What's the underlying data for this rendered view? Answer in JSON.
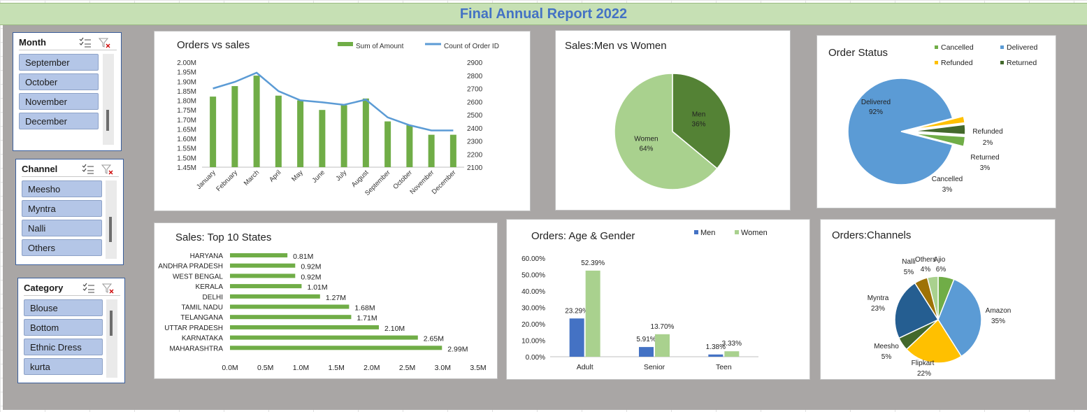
{
  "title": "Final Annual Report 2022",
  "slicers": {
    "month": {
      "title": "Month",
      "items": [
        "September",
        "October",
        "November",
        "December"
      ]
    },
    "channel": {
      "title": "Channel",
      "items": [
        "Meesho",
        "Myntra",
        "Nalli",
        "Others"
      ]
    },
    "category": {
      "title": "Category",
      "items": [
        "Blouse",
        "Bottom",
        "Ethnic Dress",
        "kurta"
      ]
    },
    "icons": [
      "multi-select-icon",
      "clear-filter-icon"
    ]
  },
  "colors": {
    "green": "#70ad47",
    "blue": "#5b9bd5",
    "dark_green": "#548235",
    "light_green": "#a9d18e",
    "gold": "#ffc000",
    "navy": "#255e91",
    "brown": "#9e7206",
    "dark_olive": "#43682b",
    "accent_blue": "#4472c4"
  },
  "chart_data": [
    {
      "id": "orders_vs_sales",
      "type": "bar",
      "title": "Orders vs sales",
      "categories": [
        "January",
        "February",
        "March",
        "April",
        "May",
        "June",
        "July",
        "August",
        "September",
        "October",
        "November",
        "December"
      ],
      "series": [
        {
          "name": "Sum of Amount",
          "type": "bar",
          "axis": "left",
          "values": [
            1.82,
            1.875,
            1.93,
            1.825,
            1.8,
            1.75,
            1.775,
            1.81,
            1.69,
            1.67,
            1.62,
            1.62
          ]
        },
        {
          "name": "Count of Order ID",
          "type": "line",
          "axis": "right",
          "values": [
            2700,
            2750,
            2820,
            2680,
            2610,
            2595,
            2575,
            2615,
            2480,
            2420,
            2380,
            2380
          ]
        }
      ],
      "left_ticks": [
        "1.45M",
        "1.50M",
        "1.55M",
        "1.60M",
        "1.65M",
        "1.70M",
        "1.75M",
        "1.80M",
        "1.85M",
        "1.90M",
        "1.95M",
        "2.00M"
      ],
      "right_ticks": [
        "2100",
        "2200",
        "2300",
        "2400",
        "2500",
        "2600",
        "2700",
        "2800",
        "2900"
      ],
      "ylim_left": [
        1.45,
        2.0
      ],
      "ylim_right": [
        2100,
        2900
      ]
    },
    {
      "id": "men_vs_women",
      "type": "pie",
      "title": "Sales:Men vs Women",
      "slices": [
        {
          "label": "Men",
          "pct": "36%",
          "value": 36,
          "color": "#548235"
        },
        {
          "label": "Women",
          "pct": "64%",
          "value": 64,
          "color": "#a9d18e"
        }
      ]
    },
    {
      "id": "order_status",
      "type": "pie",
      "title": "Order Status",
      "legend": [
        "Cancelled",
        "Delivered",
        "Refunded",
        "Returned"
      ],
      "slices": [
        {
          "label": "Delivered",
          "pct": "92%",
          "value": 92,
          "color": "#5b9bd5"
        },
        {
          "label": "Refunded",
          "pct": "2%",
          "value": 2,
          "color": "#ffc000"
        },
        {
          "label": "Returned",
          "pct": "3%",
          "value": 3,
          "color": "#43682b"
        },
        {
          "label": "Cancelled",
          "pct": "3%",
          "value": 3,
          "color": "#70ad47"
        }
      ]
    },
    {
      "id": "top_states",
      "type": "bar",
      "orientation": "horizontal",
      "title": "Sales: Top 10 States",
      "categories": [
        "HARYANA",
        "ANDHRA PRADESH",
        "WEST BENGAL",
        "KERALA",
        "DELHI",
        "TAMIL NADU",
        "TELANGANA",
        "UTTAR PRADESH",
        "KARNATAKA",
        "MAHARASHTRA"
      ],
      "values": [
        0.81,
        0.92,
        0.92,
        1.01,
        1.27,
        1.68,
        1.71,
        2.1,
        2.65,
        2.99
      ],
      "value_labels": [
        "0.81M",
        "0.92M",
        "0.92M",
        "1.01M",
        "1.27M",
        "1.68M",
        "1.71M",
        "2.10M",
        "2.65M",
        "2.99M"
      ],
      "x_ticks": [
        "0.0M",
        "0.5M",
        "1.0M",
        "1.5M",
        "2.0M",
        "2.5M",
        "3.0M",
        "3.5M"
      ],
      "xlim": [
        0,
        3.5
      ]
    },
    {
      "id": "age_gender",
      "type": "bar",
      "title": "Orders: Age & Gender",
      "categories": [
        "Adult",
        "Senior",
        "Teen"
      ],
      "series": [
        {
          "name": "Men",
          "values": [
            23.29,
            5.91,
            1.38
          ],
          "labels": [
            "23.29%",
            "5.91%",
            "1.38%"
          ],
          "color": "#4472c4"
        },
        {
          "name": "Women",
          "values": [
            52.39,
            13.7,
            3.33
          ],
          "labels": [
            "52.39%",
            "13.70%",
            "3.33%"
          ],
          "color": "#a9d18e"
        }
      ],
      "y_ticks": [
        "0.00%",
        "10.00%",
        "20.00%",
        "30.00%",
        "40.00%",
        "50.00%",
        "60.00%"
      ],
      "ylim": [
        0,
        60
      ]
    },
    {
      "id": "channels",
      "type": "pie",
      "title": "Orders:Channels",
      "slices": [
        {
          "label": "Ajio",
          "pct": "6%",
          "value": 6,
          "color": "#70ad47"
        },
        {
          "label": "Amazon",
          "pct": "35%",
          "value": 35,
          "color": "#5b9bd5"
        },
        {
          "label": "Flipkart",
          "pct": "22%",
          "value": 22,
          "color": "#ffc000"
        },
        {
          "label": "Meesho",
          "pct": "5%",
          "value": 5,
          "color": "#43682b"
        },
        {
          "label": "Myntra",
          "pct": "23%",
          "value": 23,
          "color": "#255e91"
        },
        {
          "label": "Nalli",
          "pct": "5%",
          "value": 5,
          "color": "#9e7206"
        },
        {
          "label": "Others",
          "pct": "4%",
          "value": 4,
          "color": "#a9d18e"
        }
      ]
    }
  ]
}
